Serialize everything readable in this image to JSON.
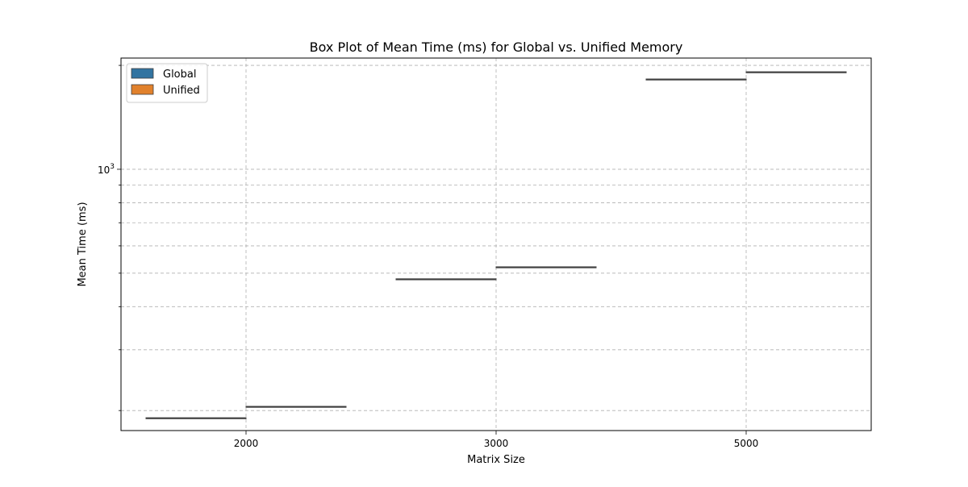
{
  "chart_data": {
    "type": "box",
    "title": "Box Plot of Mean Time (ms) for Global vs. Unified Memory",
    "xlabel": "Matrix Size",
    "ylabel": "Mean Time (ms)",
    "yscale": "log",
    "ylim": [
      175,
      2100
    ],
    "ytick_labels": [
      {
        "value": 1000,
        "base": "10",
        "exp": "3"
      }
    ],
    "grid": true,
    "legend_position": "top-left",
    "categories": [
      "2000",
      "3000",
      "5000"
    ],
    "series": [
      {
        "name": "Global",
        "color": "#3274a1",
        "values": [
          190,
          480,
          1820
        ]
      },
      {
        "name": "Unified",
        "color": "#e1812c",
        "values": [
          205,
          520,
          1910
        ]
      }
    ]
  }
}
